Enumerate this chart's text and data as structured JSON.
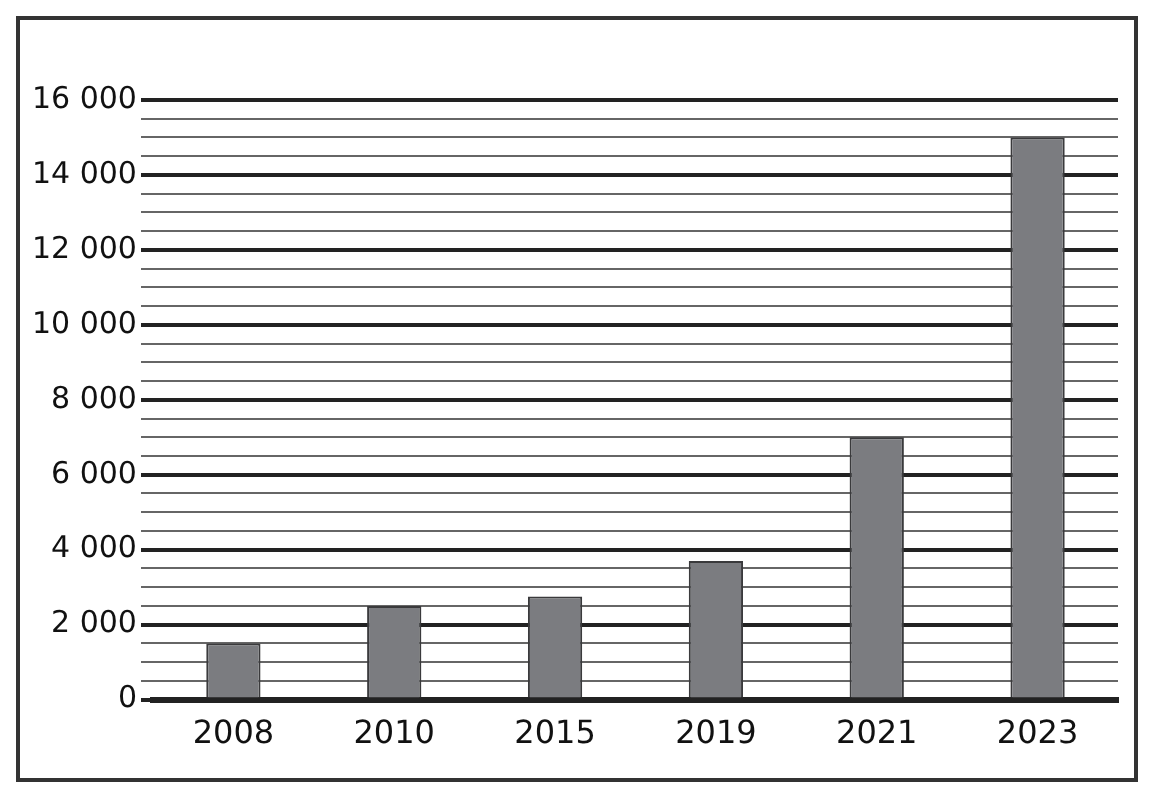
{
  "chart_data": {
    "type": "bar",
    "categories": [
      "2008",
      "2010",
      "2015",
      "2019",
      "2021",
      "2023"
    ],
    "values": [
      1500,
      2500,
      2750,
      3700,
      7000,
      15000
    ],
    "color": "#7b7c80",
    "ylim": [
      0,
      16000
    ],
    "yticks": [
      {
        "value": 0,
        "label": "0"
      },
      {
        "value": 500,
        "label": null
      },
      {
        "value": 1000,
        "label": null
      },
      {
        "value": 1500,
        "label": null
      },
      {
        "value": 2000,
        "label": "2 000"
      },
      {
        "value": 2500,
        "label": null
      },
      {
        "value": 3000,
        "label": null
      },
      {
        "value": 3500,
        "label": null
      },
      {
        "value": 4000,
        "label": "4 000"
      },
      {
        "value": 4500,
        "label": null
      },
      {
        "value": 5000,
        "label": null
      },
      {
        "value": 5500,
        "label": null
      },
      {
        "value": 6000,
        "label": "6 000"
      },
      {
        "value": 6500,
        "label": null
      },
      {
        "value": 7000,
        "label": null
      },
      {
        "value": 7500,
        "label": null
      },
      {
        "value": 8000,
        "label": "8 000"
      },
      {
        "value": 8500,
        "label": null
      },
      {
        "value": 9000,
        "label": null
      },
      {
        "value": 9500,
        "label": null
      },
      {
        "value": 10000,
        "label": "10 000"
      },
      {
        "value": 10500,
        "label": null
      },
      {
        "value": 11000,
        "label": null
      },
      {
        "value": 11500,
        "label": null
      },
      {
        "value": 12000,
        "label": "12 000"
      },
      {
        "value": 12500,
        "label": null
      },
      {
        "value": 13000,
        "label": null
      },
      {
        "value": 13500,
        "label": null
      },
      {
        "value": 14000,
        "label": "14 000"
      },
      {
        "value": 14500,
        "label": null
      },
      {
        "value": 15000,
        "label": null
      },
      {
        "value": 15500,
        "label": null
      },
      {
        "value": 16000,
        "label": "16 000"
      }
    ],
    "grid": "y",
    "legend": false
  }
}
